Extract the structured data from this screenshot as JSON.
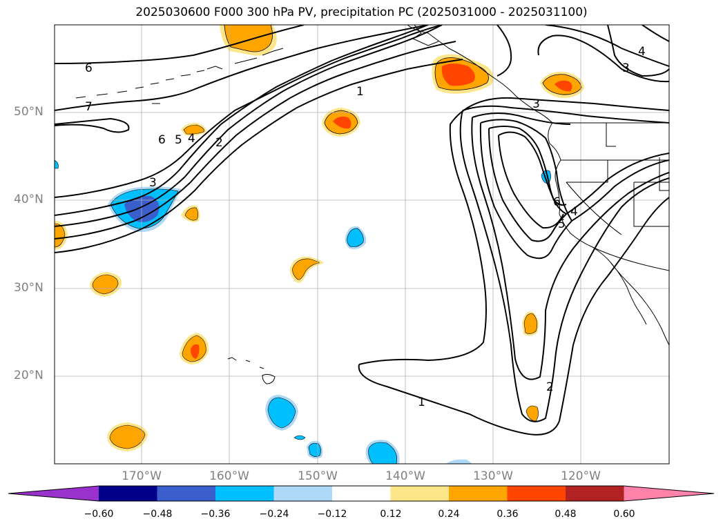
{
  "title": "2025030600 F000 300 hPa PV, precipitation PC (2025031000 - 2025031100)",
  "lat_labels": [
    "50°N",
    "40°N",
    "30°N",
    "20°N"
  ],
  "lon_labels": [
    "170°W",
    "160°W",
    "150°W",
    "140°W",
    "130°W",
    "120°W"
  ],
  "contour_labels": {
    "c1_a": "1",
    "c1_b": "1",
    "c2_a": "2",
    "c2_b": "2",
    "c3_a": "3",
    "c3_b": "3",
    "c3_c": "3",
    "c4_a": "4",
    "c4_b": "4",
    "c4_c": "4",
    "c5_a": "5",
    "c5_b": "5",
    "c6_a": "6",
    "c6_b": "6",
    "c6_c": "6",
    "c7_a": "7"
  },
  "colorbar": {
    "ticks": [
      "−0.60",
      "−0.48",
      "−0.36",
      "−0.24",
      "−0.12",
      "0.12",
      "0.24",
      "0.36",
      "0.48",
      "0.60"
    ],
    "colors": [
      "#9932cc",
      "#00008b",
      "#3a5fcd",
      "#00bfff",
      "#add8f6",
      "#ffffff",
      "#fde68a",
      "#ffa500",
      "#ff4500",
      "#b22222",
      "#ff82ab"
    ]
  }
}
